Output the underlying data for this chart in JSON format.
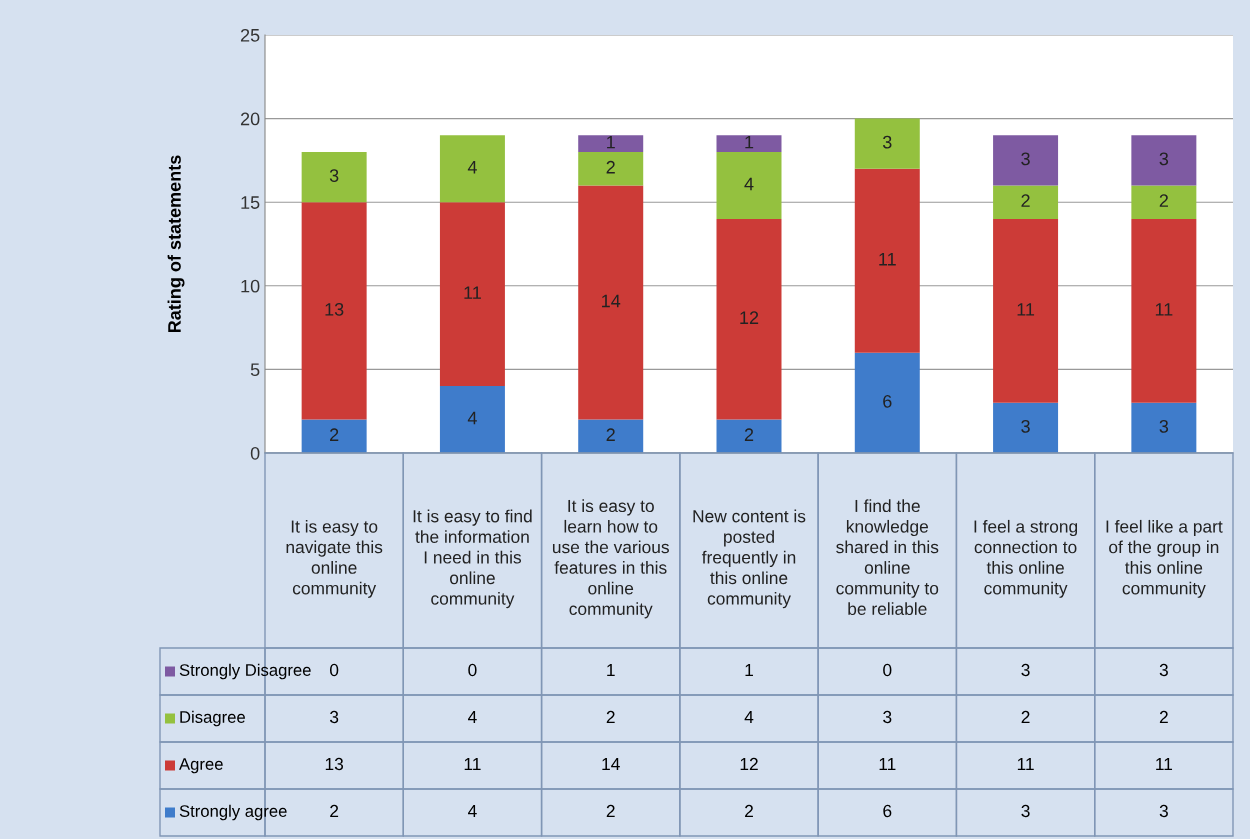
{
  "chart_data": {
    "type": "bar",
    "stacked": true,
    "ylabel": "Rating of statements",
    "categories": [
      "It is easy to navigate this online community",
      "It is easy to find the information I need in this online community",
      "It is easy to learn how to use the various features in this online community",
      "New content is posted frequently in this online community",
      "I find the knowledge shared in this online community to be reliable",
      "I feel a strong connection to this online community",
      "I feel like a part of the group in this online community"
    ],
    "series": [
      {
        "name": "Strongly agree",
        "color": "#3f7ccb",
        "values": [
          2,
          4,
          2,
          2,
          6,
          3,
          3
        ],
        "value_labels": [
          "2",
          "4",
          "2",
          "2",
          "6",
          "3",
          "3"
        ]
      },
      {
        "name": "Agree",
        "color": "#cc3b37",
        "values": [
          13,
          11,
          14,
          12,
          11,
          11,
          11
        ],
        "value_labels": [
          "13",
          "11",
          "14",
          "12",
          "11",
          "11",
          "11"
        ]
      },
      {
        "name": "Disagree",
        "color": "#94c13f",
        "values": [
          3,
          4,
          2,
          4,
          3,
          2,
          2
        ],
        "value_labels": [
          "3",
          "4",
          "2",
          "4",
          "3",
          "2",
          "2"
        ]
      },
      {
        "name": "Strongly Disagree",
        "color": "#7e5aa2",
        "values": [
          0,
          0,
          1,
          1,
          0,
          3,
          3
        ],
        "value_labels": [
          null,
          null,
          "1",
          "1",
          null,
          "3",
          "3"
        ]
      }
    ],
    "annotations": [
      "0",
      "0",
      "1",
      "1",
      "0",
      "3",
      "3",
      "3",
      "4",
      "2",
      "4",
      "3",
      "2",
      "2",
      "13",
      "11",
      "14",
      "12",
      "11",
      "11",
      "11",
      "2",
      "4",
      "2",
      "2",
      "6",
      "3",
      "3"
    ],
    "ylim": [
      0,
      25
    ],
    "yticks": [
      0,
      5,
      10,
      15,
      20,
      25
    ],
    "grid": "y",
    "legend": "bottom"
  }
}
